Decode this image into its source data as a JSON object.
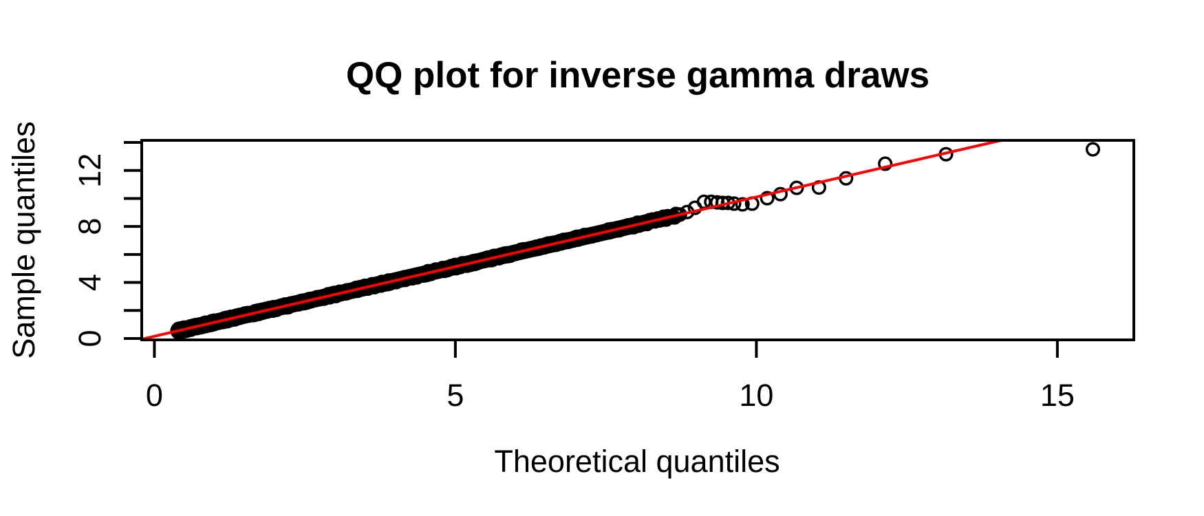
{
  "chart_data": {
    "type": "scatter",
    "title": "QQ plot for inverse gamma draws",
    "xlabel": "Theoretical quantiles",
    "ylabel": "Sample quantiles",
    "xlim": [
      -0.21,
      16.27
    ],
    "ylim": [
      -0.1,
      14.15
    ],
    "grid": false,
    "x_ticks": {
      "values": [
        0,
        5,
        10,
        15
      ],
      "labels": [
        "0",
        "5",
        "10",
        "15"
      ]
    },
    "y_ticks": {
      "labeled_values": [
        0,
        4,
        8,
        12
      ],
      "labels": [
        "0",
        "4",
        "8",
        "12"
      ],
      "minor_values": [
        2,
        6,
        10,
        14
      ]
    },
    "colors": {
      "points": "#000000",
      "ref_line": "#FF0000",
      "axis": "#000000",
      "background": "#FFFFFF"
    },
    "marker": "open-circle",
    "ref_line": {
      "slope": 0.995,
      "intercept": 0.155,
      "color": "#FF0000"
    },
    "dense_band": {
      "note": "heavily overplotted open-circle draws hugging the reference line",
      "x_start": 0.4,
      "x_end": 8.7,
      "n_points": 850,
      "x_power": 2.4,
      "y_scatter": 0.13
    },
    "upper_tail_points": [
      [
        8.73,
        8.85
      ],
      [
        8.85,
        9.03
      ],
      [
        8.98,
        9.33
      ],
      [
        9.13,
        9.76
      ],
      [
        9.25,
        9.76
      ],
      [
        9.35,
        9.72
      ],
      [
        9.44,
        9.68
      ],
      [
        9.53,
        9.68
      ],
      [
        9.63,
        9.63
      ],
      [
        9.77,
        9.58
      ],
      [
        9.93,
        9.63
      ],
      [
        10.18,
        10.02
      ],
      [
        10.4,
        10.31
      ],
      [
        10.67,
        10.76
      ],
      [
        11.04,
        10.78
      ],
      [
        11.49,
        11.44
      ],
      [
        12.14,
        12.48
      ],
      [
        13.15,
        13.16
      ],
      [
        15.59,
        13.51
      ]
    ]
  }
}
